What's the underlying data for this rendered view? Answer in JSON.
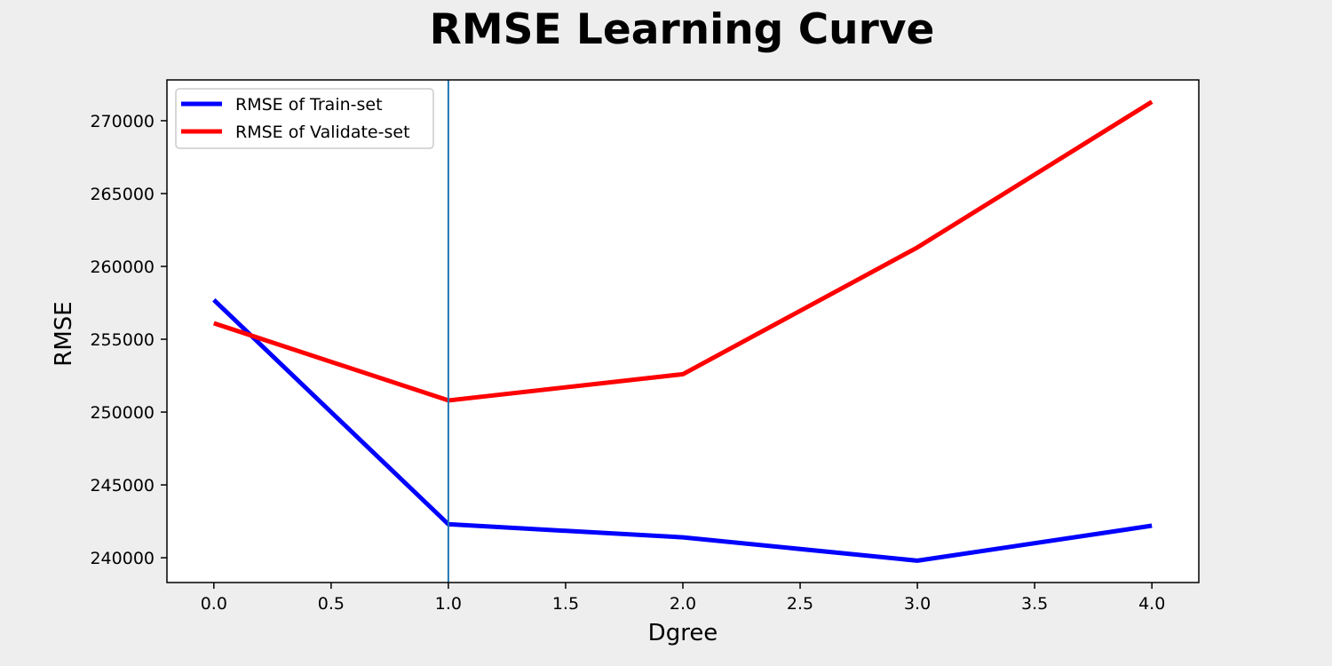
{
  "chart_data": {
    "type": "line",
    "title": "RMSE Learning Curve",
    "xlabel": "Dgree",
    "ylabel": "RMSE",
    "x": [
      0,
      1,
      2,
      3,
      4
    ],
    "xlim": [
      -0.2,
      4.2
    ],
    "ylim": [
      238300,
      272800
    ],
    "xticks": [
      0.0,
      0.5,
      1.0,
      1.5,
      2.0,
      2.5,
      3.0,
      3.5,
      4.0
    ],
    "xtick_labels": [
      "0.0",
      "0.5",
      "1.0",
      "1.5",
      "2.0",
      "2.5",
      "3.0",
      "3.5",
      "4.0"
    ],
    "yticks": [
      240000,
      245000,
      250000,
      255000,
      260000,
      265000,
      270000
    ],
    "ytick_labels": [
      "240000",
      "245000",
      "250000",
      "255000",
      "260000",
      "265000",
      "270000"
    ],
    "series": [
      {
        "name": "RMSE of Train-set",
        "color": "#0000ff",
        "values": [
          257700,
          242300,
          241400,
          239800,
          242200
        ]
      },
      {
        "name": "RMSE of Validate-set",
        "color": "#ff0000",
        "values": [
          256100,
          250800,
          252600,
          261300,
          271300
        ]
      }
    ],
    "vline": {
      "x": 1.0,
      "color": "#1f77b4"
    },
    "legend": "top-left",
    "grid": false
  }
}
